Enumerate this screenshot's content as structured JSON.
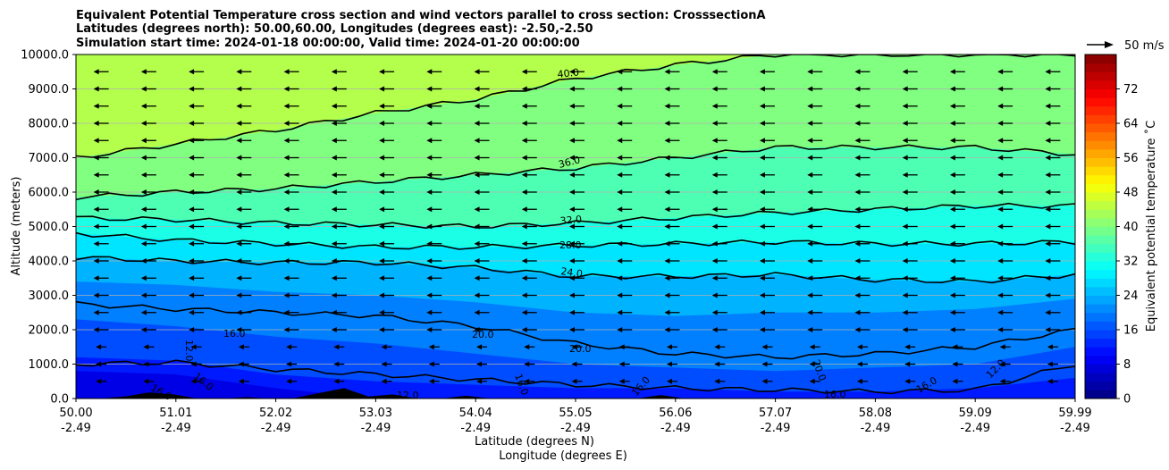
{
  "chart_data": {
    "type": "heatmap",
    "title": [
      "Equivalent Potential Temperature cross section and wind vectors parallel to cross section: CrosssectionA",
      "Latitudes (degrees north): 50.00,60.00, Longitudes (degrees east): -2.50,-2.50",
      "Simulation start time: 2024-01-18 00:00:00, Valid time: 2024-01-20 00:00:00"
    ],
    "xlabel": [
      "Latitude (degrees N)",
      "Longitude (degrees E)"
    ],
    "ylabel": "Altitude (meters)",
    "x_ticks": [
      {
        "lat": "50.00",
        "lon": "-2.49"
      },
      {
        "lat": "51.01",
        "lon": "-2.49"
      },
      {
        "lat": "52.02",
        "lon": "-2.49"
      },
      {
        "lat": "53.03",
        "lon": "-2.49"
      },
      {
        "lat": "54.04",
        "lon": "-2.49"
      },
      {
        "lat": "55.05",
        "lon": "-2.49"
      },
      {
        "lat": "56.06",
        "lon": "-2.49"
      },
      {
        "lat": "57.07",
        "lon": "-2.49"
      },
      {
        "lat": "58.08",
        "lon": "-2.49"
      },
      {
        "lat": "59.09",
        "lon": "-2.49"
      },
      {
        "lat": "59.99",
        "lon": "-2.49"
      }
    ],
    "xlim": [
      50.0,
      59.99
    ],
    "y_ticks": [
      "0.0",
      "1000.0",
      "2000.0",
      "3000.0",
      "4000.0",
      "5000.0",
      "6000.0",
      "7000.0",
      "8000.0",
      "9000.0",
      "10000.0"
    ],
    "ylim": [
      0,
      10000
    ],
    "colorbar": {
      "label": "Equivalent potential temperature ˚C",
      "ticks": [
        "0",
        "8",
        "16",
        "24",
        "32",
        "40",
        "48",
        "56",
        "64",
        "72"
      ],
      "range": [
        0,
        80
      ]
    },
    "wind_key": "50 m/s",
    "contour_labels": [
      "40.0",
      "36.0",
      "32.0",
      "28.0",
      "24.0",
      "20.0",
      "20.0",
      "20.0",
      "16.0",
      "16.0",
      "16.0",
      "16.0",
      "16.0",
      "16.0",
      "16.0",
      "12.0",
      "12.0",
      "12.0",
      "20.0"
    ],
    "contour_levels": [
      {
        "level": 40,
        "y": [
          7000,
          7400,
          7800,
          8300,
          8700,
          9300,
          9700,
          10000,
          10000,
          10000,
          10000
        ]
      },
      {
        "level": 36,
        "y": [
          5850,
          6000,
          6100,
          6300,
          6500,
          6700,
          7000,
          7300,
          7300,
          7300,
          7100
        ]
      },
      {
        "level": 32,
        "y": [
          5250,
          5200,
          5100,
          5050,
          5000,
          5100,
          5250,
          5400,
          5500,
          5600,
          5600
        ]
      },
      {
        "level": 28,
        "y": [
          4800,
          4600,
          4500,
          4400,
          4400,
          4450,
          4500,
          4550,
          4500,
          4500,
          4550
        ]
      },
      {
        "level": 24,
        "y": [
          4100,
          4000,
          3950,
          3950,
          3800,
          3550,
          3550,
          3600,
          3450,
          3400,
          3600
        ]
      },
      {
        "level": 20,
        "y": [
          2750,
          2600,
          2500,
          2400,
          2100,
          1600,
          1300,
          1200,
          1300,
          1500,
          2000
        ]
      },
      {
        "level": 16,
        "y": [
          1000,
          1050,
          850,
          700,
          550,
          400,
          300,
          250,
          200,
          250,
          1000
        ]
      }
    ],
    "field_layers_C": [
      {
        "top": [
          1200,
          1100,
          700,
          500,
          400,
          300,
          300,
          200,
          200,
          300,
          600
        ],
        "value": 12
      },
      {
        "top": [
          2300,
          2100,
          1800,
          1600,
          1300,
          1000,
          900,
          800,
          900,
          1000,
          1500
        ],
        "value": 16
      },
      {
        "top": [
          3400,
          3300,
          3100,
          3000,
          2800,
          2500,
          2400,
          2500,
          2500,
          2600,
          2900
        ],
        "value": 20
      },
      {
        "top": [
          4100,
          4000,
          3950,
          3950,
          3800,
          3550,
          3550,
          3600,
          3450,
          3400,
          3600
        ],
        "value": 24
      },
      {
        "top": [
          4800,
          4600,
          4500,
          4400,
          4400,
          4450,
          4500,
          4550,
          4500,
          4500,
          4550
        ],
        "value": 28
      },
      {
        "top": [
          5250,
          5200,
          5100,
          5050,
          5000,
          5100,
          5250,
          5400,
          5500,
          5600,
          5600
        ],
        "value": 32
      },
      {
        "top": [
          5850,
          6000,
          6100,
          6300,
          6500,
          6700,
          7000,
          7300,
          7300,
          7300,
          7100
        ],
        "value": 36
      },
      {
        "top": [
          7000,
          7400,
          7800,
          8300,
          8700,
          9300,
          9700,
          10000,
          10000,
          10000,
          10000
        ],
        "value": 40
      },
      {
        "top": [
          10000,
          10000,
          10000,
          10000,
          10000,
          10000,
          10000,
          10000,
          10000,
          10000,
          10000
        ],
        "value": 44
      }
    ],
    "terrain_m": [
      0,
      0,
      60,
      180,
      120,
      0,
      0,
      40,
      0,
      20,
      160,
      300,
      60,
      120,
      0,
      0,
      80,
      0,
      0,
      0,
      0,
      0,
      0,
      0,
      100,
      0,
      0,
      0,
      0,
      0,
      0,
      0,
      0,
      0,
      0,
      0,
      0,
      0,
      0,
      0,
      0,
      0
    ]
  }
}
